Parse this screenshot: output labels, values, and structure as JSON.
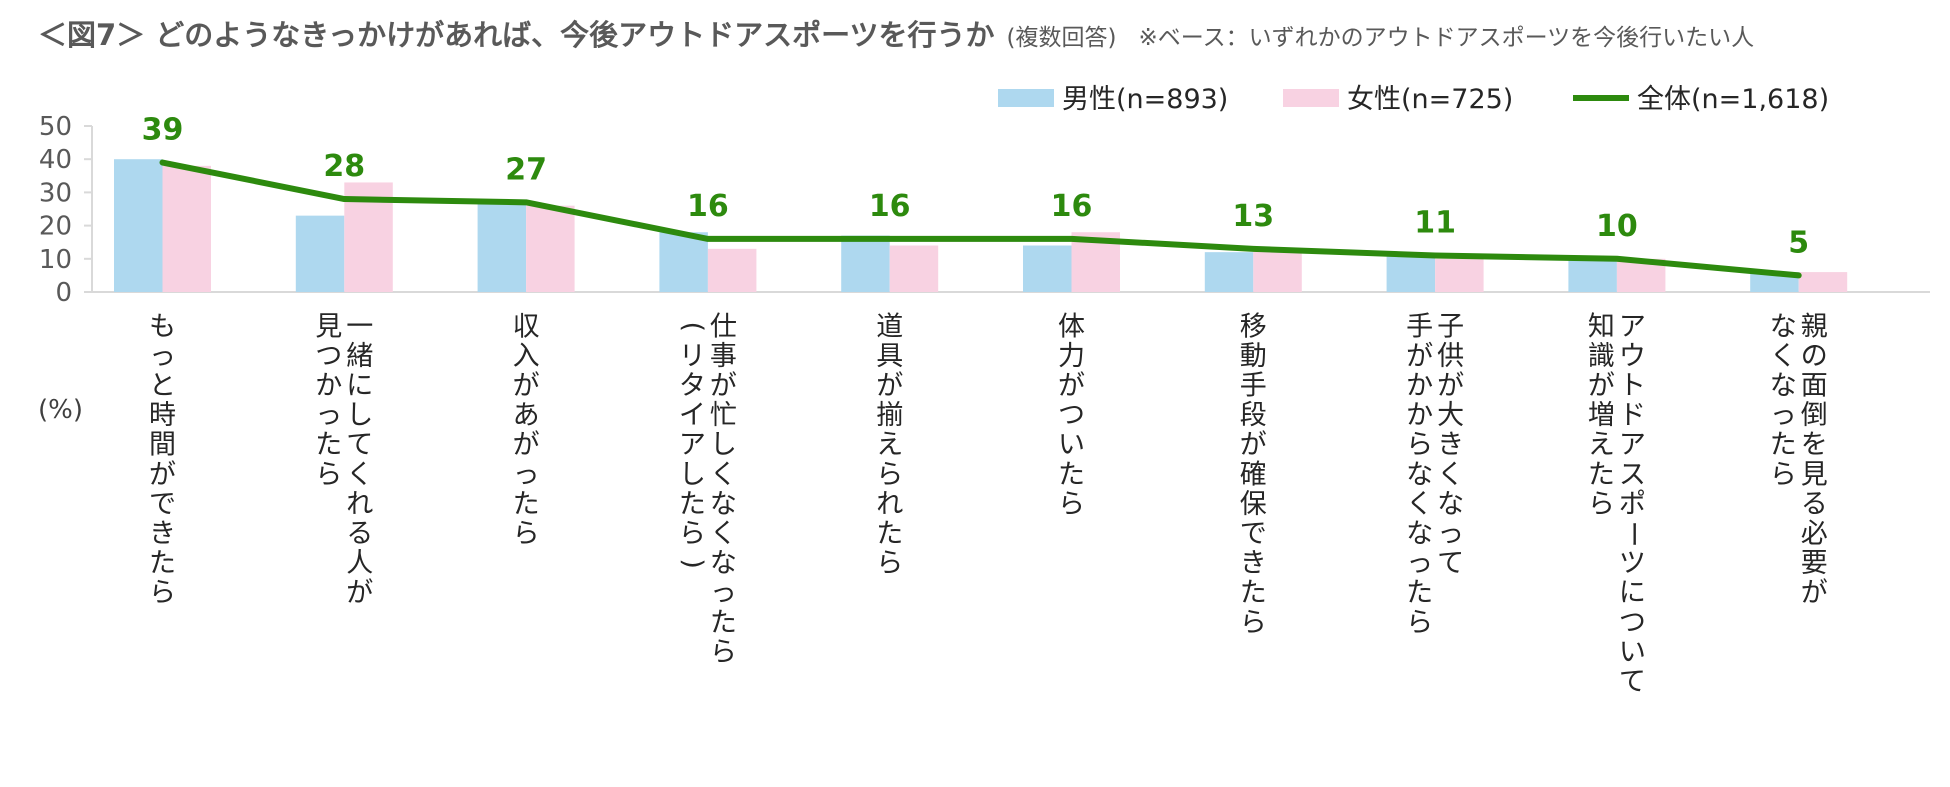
{
  "title": {
    "main": "＜図7＞ どのようなきっかけがあれば、今後アウトドアスポーツを行うか",
    "sub": "(複数回答)",
    "note": "※ベース：いずれかのアウトドアスポーツを今後行いたい人"
  },
  "chart_data": {
    "type": "bar",
    "title": "＜図7＞ どのようなきっかけがあれば、今後アウトドアスポーツを行うか",
    "unit_label": "(%)",
    "ylim": [
      0,
      50
    ],
    "yticks": [
      0,
      10,
      20,
      30,
      40,
      50
    ],
    "grid": false,
    "legend_position": "top-right",
    "categories": [
      [
        "もっと時間ができたら"
      ],
      [
        "一緒にしてくれる人が",
        "見つかったら"
      ],
      [
        "収入があがったら"
      ],
      [
        "仕事が忙しくなくなったら",
        "（リタイアしたら）"
      ],
      [
        "道具が揃えられたら"
      ],
      [
        "体力がついたら"
      ],
      [
        "移動手段が確保できたら"
      ],
      [
        "子供が大きくなって",
        "手がかからなくなったら"
      ],
      [
        "アウトドアスポーツについて",
        "知識が増えたら"
      ],
      [
        "親の面倒を見る必要が",
        "なくなったら"
      ]
    ],
    "series": [
      {
        "name": "男性(n=893)",
        "kind": "bar",
        "color": "#aed8ef",
        "values": [
          40,
          23,
          27,
          18,
          17,
          14,
          12,
          11,
          10,
          6
        ]
      },
      {
        "name": "女性(n=725)",
        "kind": "bar",
        "color": "#f8d2e2",
        "values": [
          38,
          33,
          26,
          13,
          14,
          18,
          13,
          10,
          10,
          6
        ]
      },
      {
        "name": "全体(n=1,618)",
        "kind": "line",
        "color": "#2d8a0e",
        "values": [
          39,
          28,
          27,
          16,
          16,
          16,
          13,
          11,
          10,
          5
        ]
      }
    ]
  }
}
